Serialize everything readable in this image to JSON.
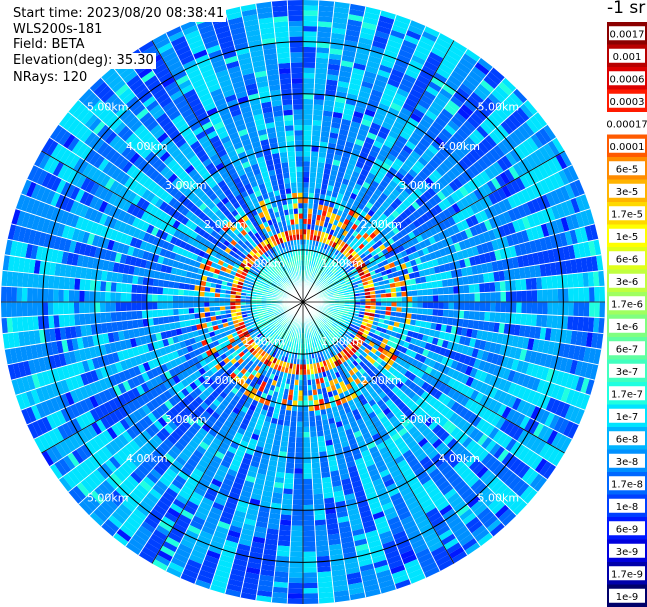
{
  "info": {
    "start_time": "Start time: 2023/08/20 08:38:41",
    "instrument": "WLS200s-181",
    "field": "Field: BETA",
    "elevation": "Elevation(deg): 35.30",
    "nrays": "NRays: 120"
  },
  "chart_data": {
    "type": "heatmap",
    "projection": "polar (PPI scan)",
    "range_rings_km": [
      "1.00km",
      "2.00km",
      "3.00km",
      "4.00km",
      "5.00km"
    ],
    "range_ring_values": [
      1,
      2,
      3,
      4,
      5
    ],
    "max_range_km": 5.8,
    "n_rays": 120,
    "colorbar": {
      "unit_label": "-1 sr",
      "ticks": [
        "0.0017",
        "0.001",
        "0.0006",
        "0.0003",
        "0.00017",
        "0.0001",
        "6e-5",
        "3e-5",
        "1.7e-5",
        "1e-5",
        "6e-6",
        "3e-6",
        "1.7e-6",
        "1e-6",
        "6e-7",
        "3e-7",
        "1.7e-7",
        "1e-7",
        "6e-8",
        "3e-8",
        "1.7e-8",
        "1e-8",
        "6e-9",
        "3e-9",
        "1.7e-9",
        "1e-9"
      ],
      "colors": [
        "#8b0000",
        "#b80000",
        "#dd0000",
        "#ff1a00",
        "#ffffff",
        "#ff5a00",
        "#ff8c00",
        "#ffb400",
        "#ffd800",
        "#ffff00",
        "#e0ff1a",
        "#c0ff40",
        "#a0ff60",
        "#7fff80",
        "#60ffa0",
        "#40ffc0",
        "#20ffe0",
        "#00e4ff",
        "#00b4ff",
        "#0090ff",
        "#0068ff",
        "#0040ff",
        "#0018ff",
        "#0000dd",
        "#0000aa",
        "#00006a"
      ]
    },
    "grid": true
  }
}
